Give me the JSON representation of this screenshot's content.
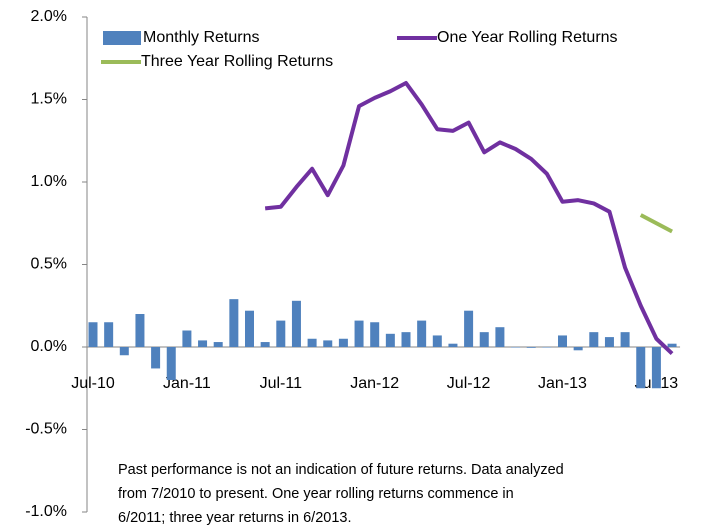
{
  "chart_data": {
    "type": "bar_line",
    "categories": [
      "Jul-10",
      null,
      null,
      null,
      null,
      null,
      "Jan-11",
      null,
      null,
      null,
      null,
      null,
      "Jul-11",
      null,
      null,
      null,
      null,
      null,
      "Jan-12",
      null,
      null,
      null,
      null,
      null,
      "Jul-12",
      null,
      null,
      null,
      null,
      null,
      "Jan-13",
      null,
      null,
      null,
      null,
      null,
      "Jul-13",
      null
    ],
    "series": [
      {
        "name": "Monthly Returns",
        "type": "bar",
        "color": "#4f81bd",
        "values": [
          0.15,
          0.15,
          -0.05,
          0.2,
          -0.13,
          -0.2,
          0.1,
          0.04,
          0.03,
          0.29,
          0.22,
          0.03,
          0.16,
          0.28,
          0.05,
          0.04,
          0.05,
          0.16,
          0.15,
          0.08,
          0.09,
          0.16,
          0.07,
          0.02,
          0.22,
          0.09,
          0.12,
          0.0,
          -0.005,
          0.0,
          0.07,
          -0.02,
          0.09,
          0.06,
          0.09,
          -0.25,
          -0.25,
          0.02
        ]
      },
      {
        "name": "One Year Rolling Returns",
        "type": "line",
        "color": "#7030a0",
        "values": [
          null,
          null,
          null,
          null,
          null,
          null,
          null,
          null,
          null,
          null,
          null,
          0.84,
          0.85,
          0.97,
          1.08,
          0.92,
          1.1,
          1.46,
          1.51,
          1.55,
          1.6,
          1.47,
          1.32,
          1.31,
          1.36,
          1.18,
          1.24,
          1.2,
          1.14,
          1.05,
          0.88,
          0.89,
          0.87,
          0.82,
          0.48,
          0.25,
          0.05,
          -0.04
        ]
      },
      {
        "name": "Three Year Rolling Returns",
        "type": "line",
        "color": "#9bbb59",
        "values": [
          null,
          null,
          null,
          null,
          null,
          null,
          null,
          null,
          null,
          null,
          null,
          null,
          null,
          null,
          null,
          null,
          null,
          null,
          null,
          null,
          null,
          null,
          null,
          null,
          null,
          null,
          null,
          null,
          null,
          null,
          null,
          null,
          null,
          null,
          null,
          0.8,
          0.75,
          0.7
        ]
      }
    ],
    "ylim": [
      -1,
      2
    ],
    "yticks": [
      {
        "value": -1,
        "label": "-1.0%"
      },
      {
        "value": -0.5,
        "label": "-0.5%"
      },
      {
        "value": 0,
        "label": "0.0%"
      },
      {
        "value": 0.5,
        "label": "0.5%"
      },
      {
        "value": 1,
        "label": "1.0%"
      },
      {
        "value": 1.5,
        "label": "1.5%"
      },
      {
        "value": 2,
        "label": "2.0%"
      }
    ],
    "annotation": [
      "Past performance is not an indication of future returns.  Data analyzed",
      "from 7/2010  to present.  One year rolling returns commence in",
      "6/2011; three year returns in 6/2013."
    ]
  }
}
